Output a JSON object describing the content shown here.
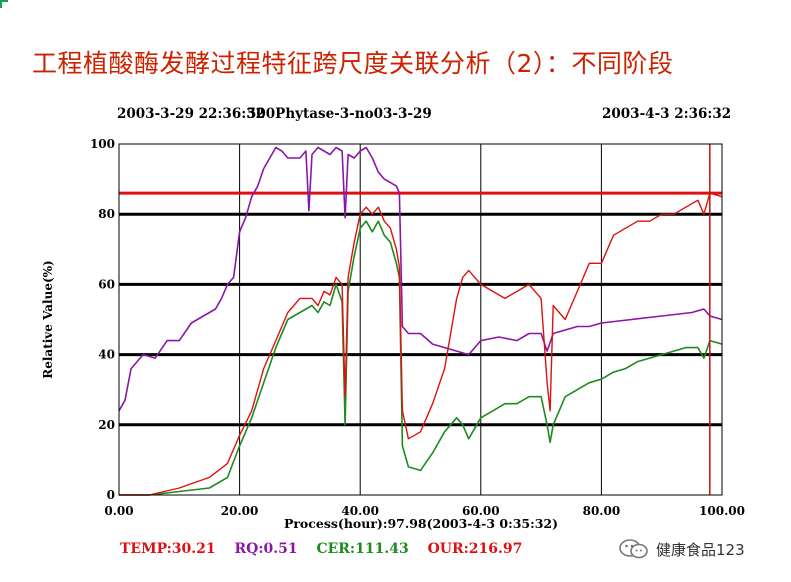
{
  "slide": {
    "title": "工程植酸酶发酵过程特征跨尺度关联分析（2）：不同阶段"
  },
  "chart_header": {
    "start_time": "2003-3-29 22:36:32",
    "batch_name": "500Phytase-3-no03-3-29",
    "end_time": "2003-4-3 2:36:32"
  },
  "readouts": {
    "temp": "TEMP:30.21",
    "rq": "RQ:0.51",
    "cer": "CER:111.43",
    "our": "OUR:216.97"
  },
  "watermark": {
    "text": "健康食品123",
    "icon": "wechat-icon"
  },
  "colors": {
    "temp": "#e01010",
    "rq": "#8a16a8",
    "cer": "#1f8a1f",
    "our": "#e01010",
    "title": "#cc2200",
    "cursor": "#c81010"
  },
  "chart_data": {
    "type": "line",
    "xlabel": "Process(hour):97.98(2003-4-3 0:35:32)",
    "ylabel": "Relative Value(%)",
    "xlim": [
      0,
      100
    ],
    "ylim": [
      0,
      100
    ],
    "x_tick_labels": [
      "0.00",
      "20.00",
      "40.00",
      "60.00",
      "80.00",
      "100.00"
    ],
    "y_tick_labels": [
      "0",
      "20",
      "40",
      "60",
      "80",
      "100"
    ],
    "grid": true,
    "cursor_x": 97.98,
    "series": [
      {
        "name": "TEMP",
        "points": [
          [
            0,
            86
          ],
          [
            100,
            86
          ]
        ]
      },
      {
        "name": "RQ",
        "points": [
          [
            0,
            24
          ],
          [
            1,
            27
          ],
          [
            2,
            36
          ],
          [
            4,
            40
          ],
          [
            6,
            39
          ],
          [
            8,
            44
          ],
          [
            10,
            44
          ],
          [
            12,
            49
          ],
          [
            14,
            51
          ],
          [
            16,
            53
          ],
          [
            17,
            56
          ],
          [
            18,
            60
          ],
          [
            19,
            62
          ],
          [
            20,
            75
          ],
          [
            21,
            79
          ],
          [
            22,
            85
          ],
          [
            23,
            88
          ],
          [
            24,
            93
          ],
          [
            25,
            96
          ],
          [
            26,
            99
          ],
          [
            27,
            98
          ],
          [
            28,
            96
          ],
          [
            30,
            96
          ],
          [
            31,
            98
          ],
          [
            31.5,
            81
          ],
          [
            32,
            97
          ],
          [
            33,
            99
          ],
          [
            34,
            98
          ],
          [
            35,
            97
          ],
          [
            36,
            99
          ],
          [
            37,
            98
          ],
          [
            37.5,
            79
          ],
          [
            38,
            97
          ],
          [
            39,
            96
          ],
          [
            40,
            98
          ],
          [
            41,
            99
          ],
          [
            42,
            96
          ],
          [
            43,
            92
          ],
          [
            44,
            90
          ],
          [
            45,
            89
          ],
          [
            46,
            88
          ],
          [
            46.5,
            86
          ],
          [
            47,
            48
          ],
          [
            48,
            46
          ],
          [
            50,
            46
          ],
          [
            52,
            43
          ],
          [
            54,
            42
          ],
          [
            56,
            41
          ],
          [
            58,
            40
          ],
          [
            60,
            44
          ],
          [
            63,
            45
          ],
          [
            66,
            44
          ],
          [
            68,
            46
          ],
          [
            70,
            46
          ],
          [
            71,
            41
          ],
          [
            72,
            46
          ],
          [
            74,
            47
          ],
          [
            76,
            48
          ],
          [
            78,
            48
          ],
          [
            80,
            49
          ],
          [
            85,
            50
          ],
          [
            90,
            51
          ],
          [
            95,
            52
          ],
          [
            97,
            53
          ],
          [
            98,
            51
          ],
          [
            100,
            50
          ]
        ]
      },
      {
        "name": "CER",
        "points": [
          [
            0,
            0
          ],
          [
            5,
            0
          ],
          [
            10,
            1
          ],
          [
            15,
            2
          ],
          [
            18,
            5
          ],
          [
            20,
            14
          ],
          [
            22,
            22
          ],
          [
            24,
            32
          ],
          [
            26,
            42
          ],
          [
            28,
            50
          ],
          [
            30,
            52
          ],
          [
            32,
            54
          ],
          [
            33,
            52
          ],
          [
            34,
            55
          ],
          [
            35,
            54
          ],
          [
            36,
            60
          ],
          [
            37,
            55
          ],
          [
            37.5,
            20
          ],
          [
            38,
            58
          ],
          [
            39,
            68
          ],
          [
            40,
            76
          ],
          [
            41,
            78
          ],
          [
            42,
            75
          ],
          [
            43,
            78
          ],
          [
            44,
            74
          ],
          [
            45,
            72
          ],
          [
            46,
            66
          ],
          [
            46.5,
            62
          ],
          [
            47,
            14
          ],
          [
            48,
            8
          ],
          [
            50,
            7
          ],
          [
            52,
            12
          ],
          [
            54,
            18
          ],
          [
            56,
            22
          ],
          [
            57,
            20
          ],
          [
            58,
            16
          ],
          [
            60,
            22
          ],
          [
            62,
            24
          ],
          [
            64,
            26
          ],
          [
            66,
            26
          ],
          [
            68,
            28
          ],
          [
            70,
            28
          ],
          [
            71,
            20
          ],
          [
            71.5,
            15
          ],
          [
            72,
            20
          ],
          [
            74,
            28
          ],
          [
            76,
            30
          ],
          [
            78,
            32
          ],
          [
            80,
            33
          ],
          [
            82,
            35
          ],
          [
            84,
            36
          ],
          [
            86,
            38
          ],
          [
            88,
            39
          ],
          [
            90,
            40
          ],
          [
            92,
            41
          ],
          [
            94,
            42
          ],
          [
            96,
            42
          ],
          [
            97,
            39
          ],
          [
            98,
            44
          ],
          [
            100,
            43
          ]
        ]
      },
      {
        "name": "OUR",
        "points": [
          [
            0,
            0
          ],
          [
            5,
            0
          ],
          [
            10,
            2
          ],
          [
            15,
            5
          ],
          [
            18,
            9
          ],
          [
            20,
            17
          ],
          [
            22,
            24
          ],
          [
            24,
            36
          ],
          [
            26,
            44
          ],
          [
            28,
            52
          ],
          [
            30,
            56
          ],
          [
            32,
            56
          ],
          [
            33,
            54
          ],
          [
            34,
            58
          ],
          [
            35,
            57
          ],
          [
            36,
            62
          ],
          [
            37,
            60
          ],
          [
            37.5,
            28
          ],
          [
            38,
            62
          ],
          [
            39,
            72
          ],
          [
            40,
            80
          ],
          [
            41,
            82
          ],
          [
            42,
            80
          ],
          [
            43,
            82
          ],
          [
            44,
            78
          ],
          [
            45,
            76
          ],
          [
            46,
            70
          ],
          [
            46.5,
            65
          ],
          [
            47,
            24
          ],
          [
            48,
            16
          ],
          [
            50,
            18
          ],
          [
            52,
            26
          ],
          [
            54,
            36
          ],
          [
            56,
            56
          ],
          [
            57,
            62
          ],
          [
            58,
            64
          ],
          [
            60,
            60
          ],
          [
            62,
            58
          ],
          [
            64,
            56
          ],
          [
            66,
            58
          ],
          [
            68,
            60
          ],
          [
            70,
            56
          ],
          [
            71,
            32
          ],
          [
            71.5,
            24
          ],
          [
            72,
            54
          ],
          [
            74,
            50
          ],
          [
            76,
            58
          ],
          [
            78,
            66
          ],
          [
            80,
            66
          ],
          [
            82,
            74
          ],
          [
            84,
            76
          ],
          [
            86,
            78
          ],
          [
            88,
            78
          ],
          [
            90,
            80
          ],
          [
            92,
            80
          ],
          [
            94,
            82
          ],
          [
            96,
            84
          ],
          [
            97,
            80
          ],
          [
            98,
            86
          ],
          [
            100,
            85
          ]
        ]
      }
    ]
  }
}
